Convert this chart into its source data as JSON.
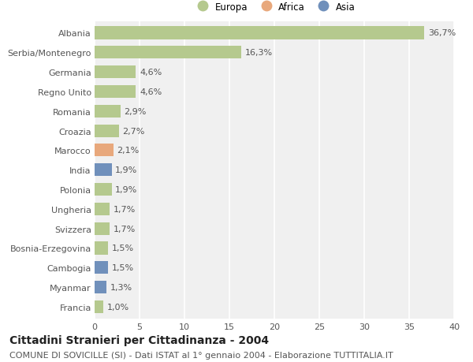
{
  "countries": [
    "Albania",
    "Serbia/Montenegro",
    "Germania",
    "Regno Unito",
    "Romania",
    "Croazia",
    "Marocco",
    "India",
    "Polonia",
    "Ungheria",
    "Svizzera",
    "Bosnia-Erzegovina",
    "Cambogia",
    "Myanmar",
    "Francia"
  ],
  "values": [
    36.7,
    16.3,
    4.6,
    4.6,
    2.9,
    2.7,
    2.1,
    1.9,
    1.9,
    1.7,
    1.7,
    1.5,
    1.5,
    1.3,
    1.0
  ],
  "labels": [
    "36,7%",
    "16,3%",
    "4,6%",
    "4,6%",
    "2,9%",
    "2,7%",
    "2,1%",
    "1,9%",
    "1,9%",
    "1,7%",
    "1,7%",
    "1,5%",
    "1,5%",
    "1,3%",
    "1,0%"
  ],
  "categories": [
    "Europa",
    "Europa",
    "Europa",
    "Europa",
    "Europa",
    "Europa",
    "Africa",
    "Asia",
    "Europa",
    "Europa",
    "Europa",
    "Europa",
    "Asia",
    "Asia",
    "Europa"
  ],
  "colors": {
    "Europa": "#b5c98e",
    "Africa": "#e8a87c",
    "Asia": "#7090bb"
  },
  "legend_labels": [
    "Europa",
    "Africa",
    "Asia"
  ],
  "legend_colors": [
    "#b5c98e",
    "#e8a87c",
    "#7090bb"
  ],
  "title1": "Cittadini Stranieri per Cittadinanza - 2004",
  "title2": "COMUNE DI SOVICILLE (SI) - Dati ISTAT al 1° gennaio 2004 - Elaborazione TUTTITALIA.IT",
  "xlim": [
    0,
    40
  ],
  "xticks": [
    0,
    5,
    10,
    15,
    20,
    25,
    30,
    35,
    40
  ],
  "background_color": "#ffffff",
  "plot_background": "#f0f0f0",
  "grid_color": "#ffffff",
  "bar_height": 0.65,
  "label_fontsize": 8,
  "tick_fontsize": 8,
  "title1_fontsize": 10,
  "title2_fontsize": 8
}
